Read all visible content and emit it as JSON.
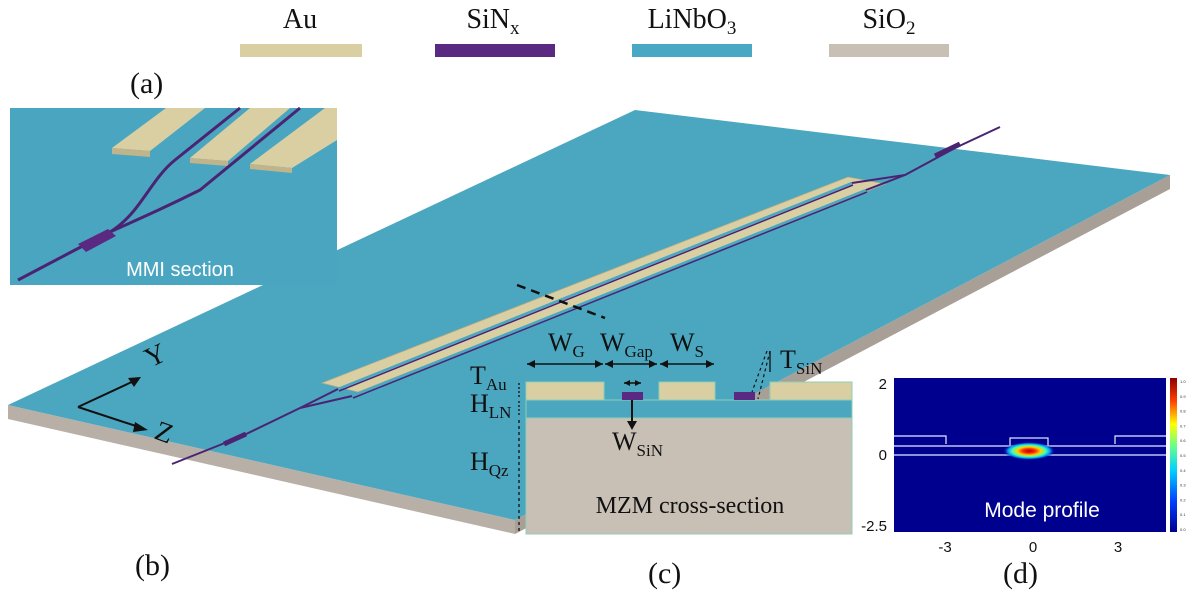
{
  "legend": {
    "items": [
      {
        "base": "Au",
        "sub": "",
        "color": "#d9cfa3"
      },
      {
        "base": "SiN",
        "sub": "x",
        "color": "#5a2a83"
      },
      {
        "base": "LiNbO",
        "sub": "3",
        "color": "#49a8c4"
      },
      {
        "base": "SiO",
        "sub": "2",
        "color": "#c8bfb5"
      }
    ]
  },
  "panels": {
    "a": "(a)",
    "b": "(b)",
    "c": "(c)",
    "d": "(d)"
  },
  "inset": {
    "caption": "MMI section"
  },
  "axes3d": {
    "y": "Y",
    "z": "Z"
  },
  "cross_section": {
    "caption": "MZM cross-section",
    "dims": {
      "wg": {
        "base": "W",
        "sub": "G"
      },
      "wgap": {
        "base": "W",
        "sub": "Gap"
      },
      "ws": {
        "base": "W",
        "sub": "S"
      },
      "tsin": {
        "base": "T",
        "sub": "SiN"
      },
      "tau": {
        "base": "T",
        "sub": "Au"
      },
      "hln": {
        "base": "H",
        "sub": "LN"
      },
      "wsin": {
        "base": "W",
        "sub": "SiN"
      },
      "hqz": {
        "base": "H",
        "sub": "Qz"
      }
    }
  },
  "mode_profile": {
    "caption": "Mode profile",
    "yticks": [
      "2",
      "0",
      "-2.5"
    ],
    "xticks": [
      "-3",
      "0",
      "3"
    ],
    "colorbar_ticks": [
      "1.0",
      "0.9",
      "0.8",
      "0.7",
      "0.6",
      "0.5",
      "0.4",
      "0.3",
      "0.2",
      "0.1",
      "0.0"
    ]
  },
  "colors": {
    "gold": "#d9cfa3",
    "sin": "#5a2a83",
    "ln": "#49a8c4",
    "quartz": "#c8bfb5",
    "mode_bg": "#00008f"
  }
}
